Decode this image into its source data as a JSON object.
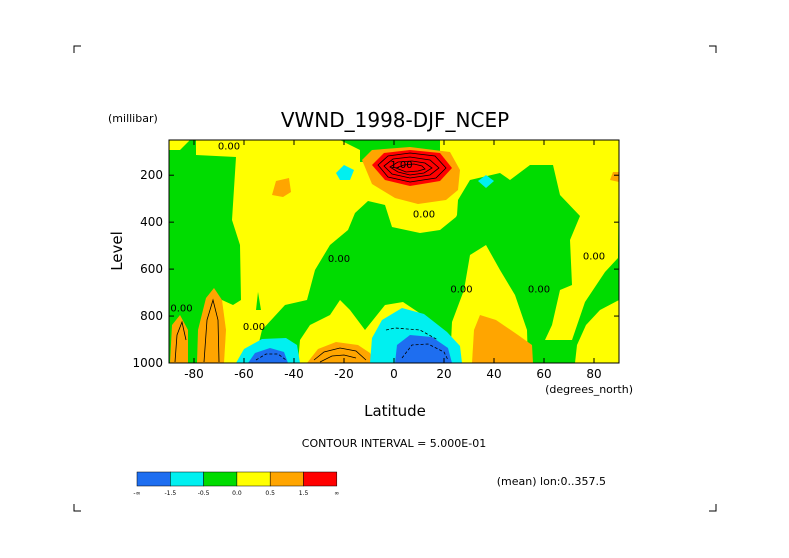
{
  "chart_data": {
    "type": "contour",
    "title": "VWND_1998-DJF_NCEP",
    "xlabel": "Latitude",
    "ylabel": "Level",
    "y_unit": "(millibar)",
    "x_unit": "(degrees_north)",
    "x_ticks": [
      -80,
      -60,
      -40,
      -20,
      0,
      20,
      40,
      60,
      80
    ],
    "x_tick_labels": [
      "-80",
      "-60",
      "-40",
      "-20",
      "0",
      "20",
      "40",
      "60",
      "80"
    ],
    "y_ticks": [
      200,
      400,
      600,
      800,
      1000
    ],
    "y_tick_labels": [
      "200",
      "400",
      "600",
      "800",
      "1000"
    ],
    "xlim": [
      -90,
      90
    ],
    "ylim": [
      1000,
      50
    ],
    "contour_interval_text": "CONTOUR INTERVAL = 5.000E-01",
    "contour_labels": [
      {
        "text": "0.00",
        "lat": -66,
        "lev": 90
      },
      {
        "text": "0.00",
        "lat": 12,
        "lev": 380
      },
      {
        "text": "0.00",
        "lat": -22,
        "lev": 570
      },
      {
        "text": "0.00",
        "lat": -56,
        "lev": 860
      },
      {
        "text": "0.00",
        "lat": -85,
        "lev": 780
      },
      {
        "text": "0.00",
        "lat": 27,
        "lev": 700
      },
      {
        "text": "0.00",
        "lat": 58,
        "lev": 700
      },
      {
        "text": "0.00",
        "lat": 80,
        "lev": 560
      },
      {
        "text": "1.00",
        "lat": 3,
        "lev": 170
      }
    ],
    "colorbar": {
      "colors": [
        "#1e6ef0",
        "#00f0f0",
        "#00dc00",
        "#ffff00",
        "#ffa500",
        "#ff0000"
      ],
      "labels": [
        "-∞",
        "-1.5",
        "-0.5",
        "0.0",
        "0.5",
        "1.5",
        "∞"
      ]
    },
    "footnote": "(mean) lon:0..357.5"
  }
}
